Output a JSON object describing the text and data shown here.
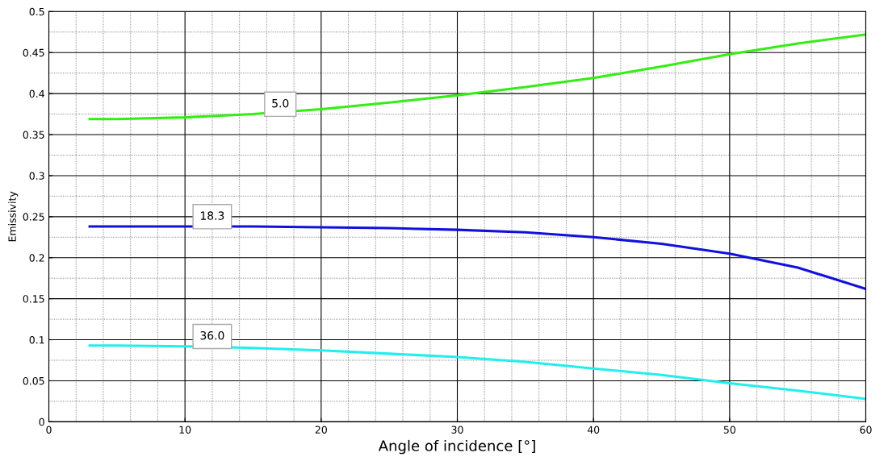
{
  "chart_data": {
    "type": "line",
    "xlabel": "Angle of incidence [°]",
    "ylabel": "Emissivity",
    "xlim": [
      0,
      60
    ],
    "xticks": [
      0,
      10,
      20,
      30,
      40,
      50,
      60
    ],
    "ylim": [
      0,
      0.5
    ],
    "yticks": [
      0,
      0.05,
      0.1,
      0.15,
      0.2,
      0.25,
      0.3,
      0.35,
      0.4,
      0.45,
      0.5
    ],
    "grid": true,
    "line_style": "solid",
    "marker": "none",
    "series": [
      {
        "name": "5.0",
        "color": "#33ee11",
        "x": [
          3,
          5,
          10,
          15,
          20,
          25,
          30,
          35,
          40,
          45,
          50,
          55,
          60
        ],
        "values": [
          0.369,
          0.369,
          0.371,
          0.375,
          0.381,
          0.389,
          0.398,
          0.408,
          0.419,
          0.433,
          0.448,
          0.461,
          0.472
        ]
      },
      {
        "name": "18.3",
        "color": "#1111dd",
        "x": [
          3,
          5,
          10,
          15,
          20,
          25,
          30,
          35,
          40,
          45,
          50,
          55,
          60
        ],
        "values": [
          0.238,
          0.238,
          0.238,
          0.238,
          0.237,
          0.236,
          0.234,
          0.231,
          0.225,
          0.217,
          0.205,
          0.188,
          0.162
        ]
      },
      {
        "name": "36.0",
        "color": "#22eeee",
        "x": [
          3,
          5,
          10,
          15,
          20,
          25,
          30,
          35,
          40,
          45,
          50,
          55,
          60
        ],
        "values": [
          0.093,
          0.093,
          0.092,
          0.09,
          0.087,
          0.083,
          0.079,
          0.073,
          0.065,
          0.057,
          0.047,
          0.038,
          0.028
        ]
      }
    ]
  }
}
